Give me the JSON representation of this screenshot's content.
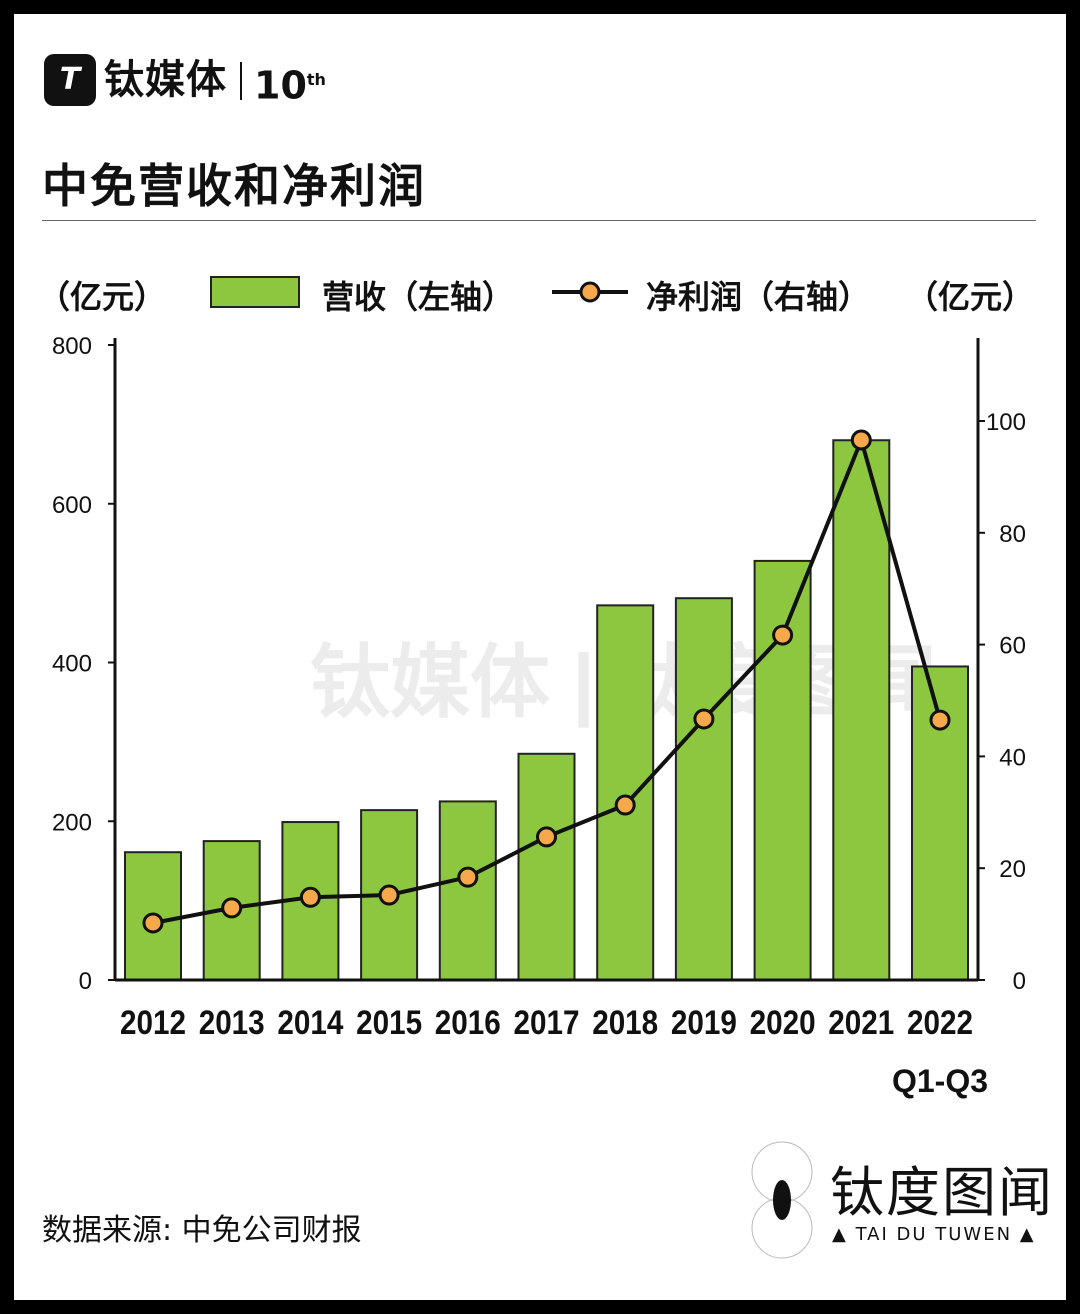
{
  "brand": {
    "logo_text": "TI",
    "name": "钛媒体",
    "anniversary": "10",
    "anniversary_suffix": "th"
  },
  "title": "中免营收和净利润",
  "legend": {
    "left_unit": "（亿元）",
    "revenue_label": "营收（左轴）",
    "profit_label": "净利润（右轴）",
    "right_unit": "（亿元）"
  },
  "source": "数据来源: 中免公司财报",
  "footer_brand": {
    "cn": "钛度图闻",
    "en": "▲ TAI DU TUWEN ▲"
  },
  "wechat": "钛媒体",
  "colors": {
    "bar": "#8dc63f",
    "marker": "#f5a94a",
    "line": "#111111"
  },
  "chart_data": {
    "type": "bar+line",
    "title": "中免营收和净利润",
    "categories": [
      "2012",
      "2013",
      "2014",
      "2015",
      "2016",
      "2017",
      "2018",
      "2019",
      "2020",
      "2021",
      "2022\nQ1-Q3"
    ],
    "category_labels": [
      "2012",
      "2013",
      "2014",
      "2015",
      "2016",
      "2017",
      "2018",
      "2019",
      "2020",
      "2021",
      "2022"
    ],
    "category_sublabel": "Q1-Q3",
    "series": [
      {
        "name": "营收（左轴）",
        "axis": "left",
        "type": "bar",
        "values": [
          161,
          175,
          199,
          214,
          225,
          285,
          472,
          481,
          528,
          680,
          395
        ]
      },
      {
        "name": "净利润（右轴）",
        "axis": "right",
        "type": "line",
        "values": [
          10.2,
          12.9,
          14.8,
          15.2,
          18.4,
          25.6,
          31.3,
          46.7,
          61.7,
          96.6,
          46.5
        ]
      }
    ],
    "left_axis": {
      "label": "（亿元）",
      "range": [
        0,
        800
      ],
      "ticks": [
        "0",
        "200",
        "400",
        "600",
        "800"
      ]
    },
    "right_axis": {
      "label": "（亿元）",
      "range": [
        0,
        114
      ],
      "ticks": [
        "0",
        "20",
        "40",
        "60",
        "80",
        "100"
      ]
    },
    "grid": false,
    "legend_position": "top"
  }
}
